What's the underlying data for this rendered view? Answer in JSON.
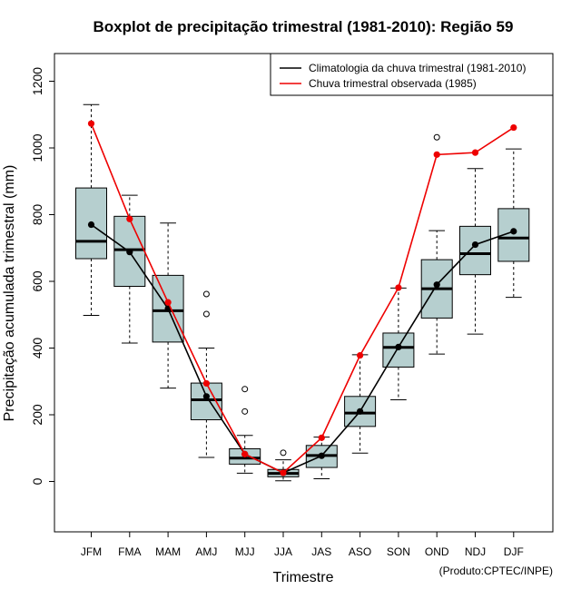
{
  "chart_data": {
    "type": "boxplot",
    "title": "Boxplot de precipitação trimestral (1981-2010): Região 59",
    "xlabel": "Trimestre",
    "ylabel": "Precipitação acumulada trimestral (mm)",
    "credit": "(Produto:CPTEC/INPE)",
    "ylim": [
      -150,
      1280
    ],
    "yticks": [
      0,
      200,
      400,
      600,
      800,
      1000,
      1200
    ],
    "categories": [
      "JFM",
      "FMA",
      "MAM",
      "AMJ",
      "MJJ",
      "JJA",
      "JAS",
      "ASO",
      "SON",
      "OND",
      "NDJ",
      "DJF"
    ],
    "boxes": [
      {
        "min": 498,
        "q1": 668,
        "median": 720,
        "q3": 880,
        "max": 1130,
        "outliers": []
      },
      {
        "min": 415,
        "q1": 585,
        "median": 695,
        "q3": 795,
        "max": 858,
        "outliers": []
      },
      {
        "min": 280,
        "q1": 418,
        "median": 512,
        "q3": 618,
        "max": 775,
        "outliers": []
      },
      {
        "min": 72,
        "q1": 185,
        "median": 245,
        "q3": 295,
        "max": 400,
        "outliers": [
          502,
          562
        ]
      },
      {
        "min": 25,
        "q1": 52,
        "median": 70,
        "q3": 98,
        "max": 138,
        "outliers": [
          210,
          277
        ]
      },
      {
        "min": 2,
        "q1": 14,
        "median": 24,
        "q3": 36,
        "max": 65,
        "outliers": [
          86
        ]
      },
      {
        "min": 8,
        "q1": 42,
        "median": 78,
        "q3": 108,
        "max": 133,
        "outliers": []
      },
      {
        "min": 85,
        "q1": 165,
        "median": 205,
        "q3": 255,
        "max": 380,
        "outliers": []
      },
      {
        "min": 245,
        "q1": 343,
        "median": 402,
        "q3": 445,
        "max": 580,
        "outliers": []
      },
      {
        "min": 382,
        "q1": 490,
        "median": 578,
        "q3": 665,
        "max": 752,
        "outliers": [
          1032
        ]
      },
      {
        "min": 442,
        "q1": 620,
        "median": 683,
        "q3": 765,
        "max": 938,
        "outliers": []
      },
      {
        "min": 552,
        "q1": 660,
        "median": 730,
        "q3": 818,
        "max": 997,
        "outliers": []
      }
    ],
    "series": [
      {
        "name": "Climatologia da chuva trimestral (1981-2010)",
        "color": "#000000",
        "values": [
          770,
          688,
          518,
          255,
          82,
          26,
          77,
          210,
          403,
          590,
          710,
          750
        ]
      },
      {
        "name": "Chuva trimestral observada (1985)",
        "color": "#ee0000",
        "values": [
          1073,
          787,
          537,
          294,
          82,
          26,
          131,
          378,
          581,
          980,
          986,
          1061
        ]
      }
    ],
    "box_fill": "#b6cfcf",
    "legend_position": "top-right"
  }
}
